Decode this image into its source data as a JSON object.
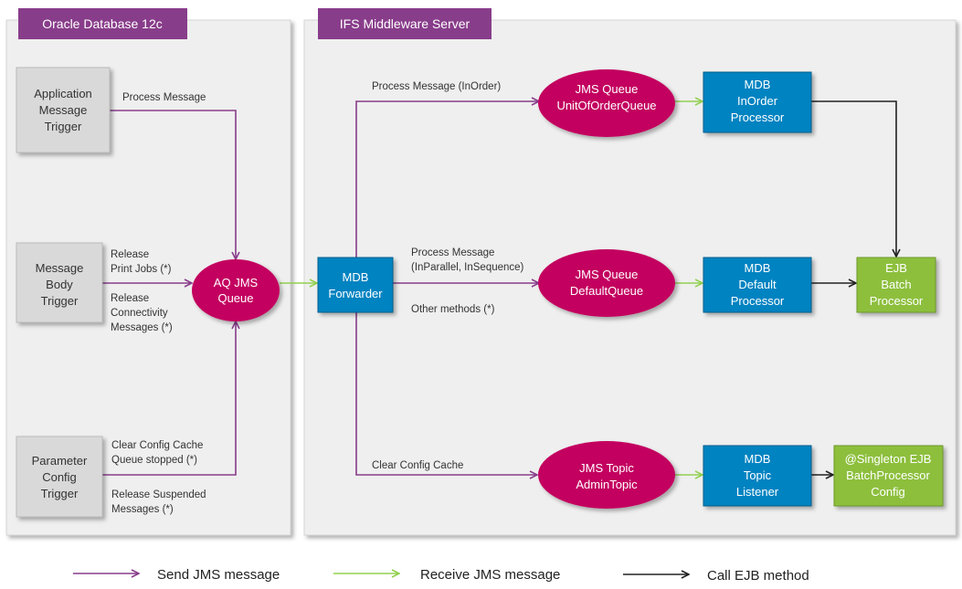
{
  "colors": {
    "panel": "#efefef",
    "header": "#883d8a",
    "trigger": "#d9d9d9",
    "queue": "#c3005f",
    "mdb": "#0083c1",
    "ejb": "#8dbf3d",
    "send_line": "#883d8a",
    "receive_line": "#92d050",
    "call_line": "#222222"
  },
  "panels": {
    "database": {
      "title": "Oracle Database  12c"
    },
    "middleware": {
      "title": "IFS Middleware Server"
    }
  },
  "triggers": {
    "application": [
      "Application",
      "Message",
      "Trigger"
    ],
    "message_body": [
      "Message",
      "Body",
      "Trigger"
    ],
    "parameter": [
      "Parameter",
      "Config",
      "Trigger"
    ]
  },
  "edges": {
    "process_message": "Process Message",
    "release_print": [
      "Release",
      "Print Jobs (*)"
    ],
    "release_conn": [
      "Release",
      "Connectivity",
      "Messages (*)"
    ],
    "clear_cache_db": [
      "Clear Config Cache",
      "Queue stopped (*)"
    ],
    "release_suspended": [
      "Release Suspended",
      "Messages (*)"
    ],
    "process_inorder": "Process Message (InOrder)",
    "process_parallel": [
      "Process Message",
      "(InParallel, InSequence)"
    ],
    "other_methods": "Other methods (*)",
    "clear_cache_mw": "Clear Config Cache"
  },
  "nodes": {
    "aq_queue": [
      "AQ JMS",
      "Queue"
    ],
    "forwarder": [
      "MDB",
      "Forwarder"
    ],
    "uoo_queue": [
      "JMS Queue",
      "UnitOfOrderQueue"
    ],
    "default_queue": [
      "JMS Queue",
      "DefaultQueue"
    ],
    "admin_topic": [
      "JMS Topic",
      "AdminTopic"
    ],
    "inorder_mdb": [
      "MDB",
      "InOrder",
      "Processor"
    ],
    "default_mdb": [
      "MDB",
      "Default",
      "Processor"
    ],
    "topic_mdb": [
      "MDB",
      "Topic",
      "Listener"
    ],
    "batch_ejb": [
      "EJB",
      "Batch",
      "Processor"
    ],
    "singleton_ejb": [
      "@Singleton EJB",
      "BatchProcessor",
      "Config"
    ]
  },
  "legend": {
    "send": "Send JMS message",
    "receive": "Receive JMS message",
    "call": "Call EJB method"
  }
}
